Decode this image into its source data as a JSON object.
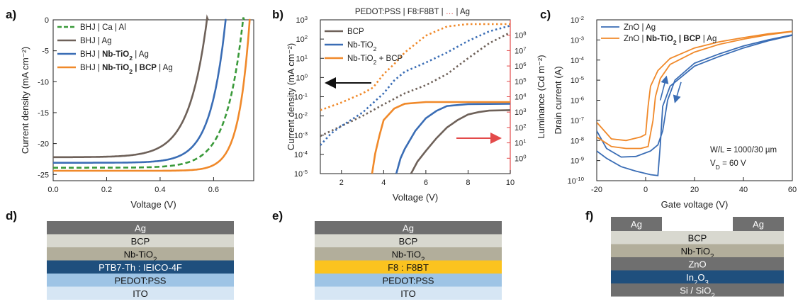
{
  "chart_data": [
    {
      "panel": "a)",
      "type": "line",
      "xlabel": "Voltage (V)",
      "ylabel": "Current density (mA cm⁻²)",
      "xlim": [
        0,
        0.75
      ],
      "ylim": [
        -26,
        0
      ],
      "xticks": [
        "0.0",
        "0.2",
        "0.4",
        "0.6"
      ],
      "yticks": [
        "0",
        "-5",
        "-10",
        "-15",
        "-20",
        "-25"
      ],
      "legend_position": "top-left",
      "series": [
        {
          "name": "BHJ | Ca | Al",
          "color": "#3a9a3a",
          "dash": true,
          "jsc": -23.9,
          "voc": 0.71,
          "n": 2.4
        },
        {
          "name": "BHJ | Ag",
          "color": "#6e6159",
          "jsc": -22.2,
          "voc": 0.575,
          "n": 2.6
        },
        {
          "name_parts": [
            "BHJ | ",
            "Nb-TiO",
            "2",
            " | Ag"
          ],
          "name": "BHJ | Nb-TiO2 | Ag",
          "color": "#3a6db5",
          "jsc": -23.1,
          "voc": 0.645,
          "n": 2.2
        },
        {
          "name_parts": [
            "BHJ | ",
            "Nb-TiO",
            "2",
            " | BCP",
            " | Ag"
          ],
          "name": "BHJ | Nb-TiO2 | BCP | Ag",
          "color": "#f0892a",
          "jsc": -24.4,
          "voc": 0.735,
          "n": 1.6
        }
      ]
    },
    {
      "panel": "b)",
      "type": "line",
      "title": "PEDOT:PSS | F8:F8BT | … | Ag",
      "title_parts": [
        "PEDOT:PSS | F8:F8BT | ",
        "…",
        " | Ag"
      ],
      "xlabel": "Voltage (V)",
      "ylabel": "Current density (mA cm⁻²)",
      "y2label": "Luminance (Cd m⁻²)",
      "xlim": [
        1,
        10
      ],
      "ylim": [
        1e-05,
        1000
      ],
      "y2lim": [
        0.1,
        1000000000.0
      ],
      "yscale": "log",
      "xticks": [
        "2",
        "4",
        "6",
        "8",
        "10"
      ],
      "yticks_exp": [
        "-5",
        "-4",
        "-3",
        "-2",
        "-1",
        "0",
        "1",
        "2",
        "3"
      ],
      "y2ticks_exp": [
        "0",
        "1",
        "2",
        "3",
        "4",
        "5",
        "6",
        "7",
        "8"
      ],
      "legend_position": "top-left",
      "series": [
        {
          "name": "BCP",
          "color": "#6e6159",
          "current": [
            [
              1,
              0.0009
            ],
            [
              2,
              0.003
            ],
            [
              3,
              0.01
            ],
            [
              4,
              0.04
            ],
            [
              5,
              0.15
            ],
            [
              6,
              0.4
            ],
            [
              7,
              1.5
            ],
            [
              8,
              10
            ],
            [
              9,
              60
            ],
            [
              10,
              220
            ]
          ],
          "luminance": [
            [
              5.3,
              0.1
            ],
            [
              5.6,
              0.6
            ],
            [
              6,
              3
            ],
            [
              6.5,
              20
            ],
            [
              7,
              100
            ],
            [
              7.5,
              300
            ],
            [
              8,
              700
            ],
            [
              8.5,
              1000
            ],
            [
              9,
              1250
            ],
            [
              10,
              1350
            ]
          ]
        },
        {
          "name_parts": [
            "Nb-TiO",
            "2"
          ],
          "name": "Nb-TiO2",
          "color": "#3a6db5",
          "current": [
            [
              1,
              0.0003
            ],
            [
              1.5,
              0.0012
            ],
            [
              2,
              0.003
            ],
            [
              3,
              0.015
            ],
            [
              4,
              0.15
            ],
            [
              4.5,
              0.7
            ],
            [
              5,
              2
            ],
            [
              6,
              6
            ],
            [
              7,
              20
            ],
            [
              8,
              80
            ],
            [
              9,
              250
            ],
            [
              10,
              500
            ]
          ],
          "luminance": [
            [
              4.6,
              0.1
            ],
            [
              4.8,
              1
            ],
            [
              5,
              4
            ],
            [
              5.5,
              60
            ],
            [
              6,
              400
            ],
            [
              6.5,
              1200
            ],
            [
              7,
              2500
            ],
            [
              8,
              3300
            ],
            [
              10,
              3500
            ]
          ]
        },
        {
          "name": "Nb-TiO2 + BCP",
          "name_parts": [
            "Nb-TiO",
            "2",
            " + BCP"
          ],
          "color": "#f0892a",
          "current": [
            [
              1,
              0.02
            ],
            [
              2,
              0.05
            ],
            [
              3,
              0.15
            ],
            [
              3.5,
              0.3
            ],
            [
              4,
              1.5
            ],
            [
              4.5,
              5
            ],
            [
              5,
              20
            ],
            [
              6,
              150
            ],
            [
              7,
              450
            ],
            [
              8,
              600
            ],
            [
              10,
              600
            ]
          ],
          "luminance": [
            [
              3.45,
              0.1
            ],
            [
              3.6,
              2
            ],
            [
              3.8,
              30
            ],
            [
              4,
              300
            ],
            [
              4.5,
              1700
            ],
            [
              5,
              3500
            ],
            [
              6,
              4500
            ],
            [
              10,
              4500
            ]
          ]
        }
      ]
    },
    {
      "panel": "c)",
      "type": "line",
      "xlabel": "Gate voltage (V)",
      "ylabel": "Drain current (A)",
      "xlim": [
        -20,
        60
      ],
      "ylim": [
        1e-10,
        0.01
      ],
      "yscale": "log",
      "xticks": [
        "-20",
        "0",
        "20",
        "40",
        "60"
      ],
      "yticks_exp": [
        "-10",
        "-9",
        "-8",
        "-7",
        "-6",
        "-5",
        "-4",
        "-3",
        "-2"
      ],
      "legend_position": "top-left",
      "annotation_lines": [
        "W/L = 1000/30 µm",
        "V",
        "D",
        " = 60 V"
      ],
      "series": [
        {
          "name": "ZnO | Ag",
          "color": "#3a6db5",
          "forward": [
            [
              -20,
              3e-08
            ],
            [
              -16,
              4e-09
            ],
            [
              -10,
              1.5e-09
            ],
            [
              -4,
              1.6e-09
            ],
            [
              2,
              3e-09
            ],
            [
              5,
              6e-09
            ],
            [
              7,
              3e-08
            ],
            [
              9,
              1e-06
            ],
            [
              12,
              1e-05
            ],
            [
              20,
              7e-05
            ],
            [
              30,
              0.0002
            ],
            [
              40,
              0.0005
            ],
            [
              50,
              0.001
            ],
            [
              60,
              0.0018
            ]
          ],
          "reverse": [
            [
              -20,
              3e-09
            ],
            [
              -16,
              1.3e-09
            ],
            [
              -10,
              5e-10
            ],
            [
              -4,
              3e-10
            ],
            [
              2,
              2e-10
            ],
            [
              5,
              1.8e-10
            ],
            [
              6,
              6e-09
            ],
            [
              7,
              5e-07
            ],
            [
              10,
              5e-06
            ],
            [
              20,
              5e-05
            ],
            [
              30,
              0.00015
            ],
            [
              40,
              0.0004
            ],
            [
              50,
              0.0009
            ],
            [
              60,
              0.0017
            ]
          ]
        },
        {
          "name_parts": [
            "ZnO | ",
            "Nb-TiO",
            "2",
            " | BCP",
            " | Ag"
          ],
          "name": "ZnO | Nb-TiO2 | BCP | Ag",
          "color": "#f0892a",
          "forward": [
            [
              -20,
              8e-08
            ],
            [
              -14,
              1.2e-08
            ],
            [
              -8,
              1e-08
            ],
            [
              -2,
              1.5e-08
            ],
            [
              0,
              2e-08
            ],
            [
              1,
              5e-07
            ],
            [
              2,
              5e-06
            ],
            [
              5,
              3e-05
            ],
            [
              10,
              0.00012
            ],
            [
              20,
              0.0004
            ],
            [
              30,
              0.0008
            ],
            [
              40,
              0.0013
            ],
            [
              50,
              0.002
            ],
            [
              60,
              0.0027
            ]
          ],
          "reverse": [
            [
              -20,
              1.5e-08
            ],
            [
              -14,
              5e-09
            ],
            [
              -8,
              4e-09
            ],
            [
              -2,
              4e-09
            ],
            [
              1,
              5e-09
            ],
            [
              3,
              1e-07
            ],
            [
              4,
              1.5e-06
            ],
            [
              6,
              1.2e-05
            ],
            [
              10,
              6e-05
            ],
            [
              20,
              0.00025
            ],
            [
              30,
              0.0006
            ],
            [
              40,
              0.0011
            ],
            [
              50,
              0.0018
            ],
            [
              60,
              0.0026
            ]
          ]
        }
      ]
    }
  ],
  "stacks": {
    "d": {
      "letter": "d)",
      "layers": [
        {
          "text": "Ag",
          "bg": "#6f6f6f",
          "fg": "#ffffff"
        },
        {
          "text": "BCP",
          "bg": "#d8d8cf",
          "fg": "#111111"
        },
        {
          "text_parts": [
            "Nb-TiO",
            "2"
          ],
          "bg": "#b2ae9b",
          "fg": "#111111"
        },
        {
          "text": "PTB7-Th : IEICO-4F",
          "bg": "#1f4f7d",
          "fg": "#ffffff"
        },
        {
          "text": "PEDOT:PSS",
          "bg": "#9ec4e5",
          "fg": "#111111"
        },
        {
          "text": "ITO",
          "bg": "#d6e6f4",
          "fg": "#111111"
        }
      ]
    },
    "e": {
      "letter": "e)",
      "layers": [
        {
          "text": "Ag",
          "bg": "#6f6f6f",
          "fg": "#ffffff"
        },
        {
          "text": "BCP",
          "bg": "#d8d8cf",
          "fg": "#111111"
        },
        {
          "text_parts": [
            "Nb-TiO",
            "2"
          ],
          "bg": "#b2ae9b",
          "fg": "#111111"
        },
        {
          "text": "F8 : F8BT",
          "bg": "#fbc31f",
          "fg": "#111111"
        },
        {
          "text": "PEDOT:PSS",
          "bg": "#9ec4e5",
          "fg": "#111111"
        },
        {
          "text": "ITO",
          "bg": "#d6e6f4",
          "fg": "#111111"
        }
      ]
    },
    "f": {
      "letter": "f)",
      "electrodes": [
        "Ag",
        "Ag"
      ],
      "layers": [
        {
          "text": "BCP",
          "bg": "#d8d8cf",
          "fg": "#111111"
        },
        {
          "text_parts": [
            "Nb-TiO",
            "2"
          ],
          "bg": "#b2ae9b",
          "fg": "#111111"
        },
        {
          "text": "ZnO",
          "bg": "#6f6f6f",
          "fg": "#ffffff"
        },
        {
          "text_parts": [
            "In",
            "2",
            "O",
            "3"
          ],
          "bg": "#1f4f7d",
          "fg": "#ffffff"
        },
        {
          "text": "Si / SiO2",
          "text_parts": [
            "Si / SiO",
            "2"
          ],
          "bg": "#6f6f6f",
          "fg": "#ffffff"
        }
      ]
    }
  },
  "colors": {
    "luminance_axis": "#e34a4a",
    "arrow_left": "#111111",
    "arrow_right": "#e34a4a"
  }
}
